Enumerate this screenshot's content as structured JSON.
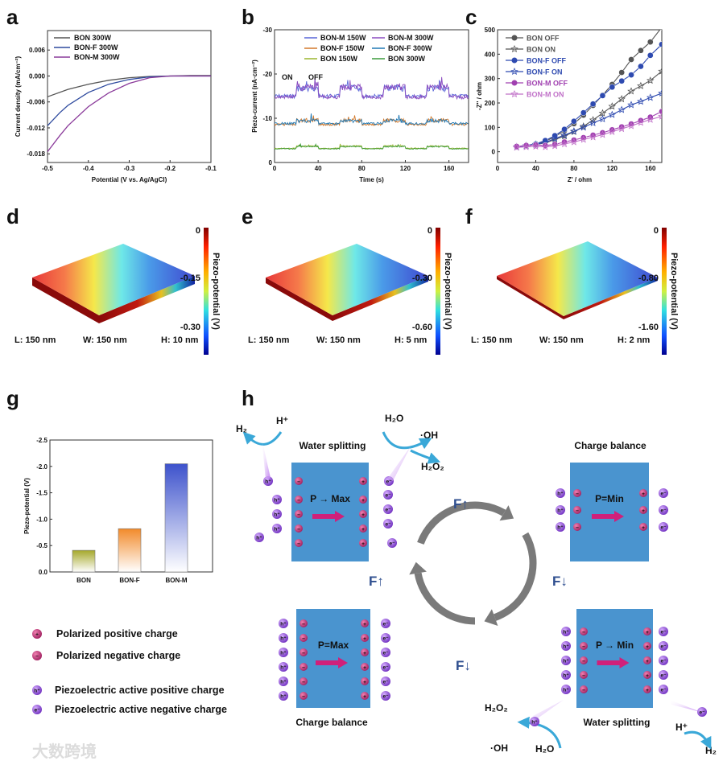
{
  "panel_labels": [
    "a",
    "b",
    "c",
    "d",
    "e",
    "f",
    "g",
    "h"
  ],
  "chart_data": [
    {
      "id": "a",
      "type": "line",
      "xlabel": "Potential (V vs. Ag/AgCl)",
      "ylabel": "Current density (mA/cm⁻²)",
      "xlim": [
        -0.5,
        -0.1
      ],
      "ylim": [
        -0.02,
        0.0105
      ],
      "xticks": [
        -0.5,
        -0.4,
        -0.3,
        -0.2,
        -0.1
      ],
      "xtick_labels": [
        "-0.5",
        "-0.4",
        "-0.3",
        "-0.2",
        "-0.1"
      ],
      "yticks": [
        0.006,
        0.0,
        -0.006,
        -0.012,
        -0.018
      ],
      "ytick_labels": [
        "0.006",
        "0.000",
        "-0.006",
        "-0.012",
        "-0.018"
      ],
      "legend_position": "top-left",
      "series": [
        {
          "name": "BON 300W",
          "color": "#555555",
          "x": [
            -0.5,
            -0.45,
            -0.4,
            -0.35,
            -0.3,
            -0.25,
            -0.2,
            -0.15,
            -0.1
          ],
          "y": [
            -0.0048,
            -0.0031,
            -0.0019,
            -0.001,
            -0.0004,
            -0.0001,
            0,
            0.0001,
            0.0001
          ]
        },
        {
          "name": "BON-F 300W",
          "color": "#2e4a9e",
          "x": [
            -0.5,
            -0.47,
            -0.45,
            -0.4,
            -0.35,
            -0.3,
            -0.25,
            -0.2,
            -0.15,
            -0.1
          ],
          "y": [
            -0.0115,
            -0.0085,
            -0.0068,
            -0.0038,
            -0.0019,
            -0.0008,
            -0.0002,
            0,
            0,
            0
          ]
        },
        {
          "name": "BON-M 300W",
          "color": "#8a3a9a",
          "x": [
            -0.5,
            -0.47,
            -0.45,
            -0.4,
            -0.35,
            -0.3,
            -0.25,
            -0.2,
            -0.15,
            -0.1
          ],
          "y": [
            -0.0175,
            -0.0138,
            -0.0115,
            -0.0071,
            -0.0039,
            -0.0017,
            -0.0004,
            0,
            0,
            0
          ]
        }
      ]
    },
    {
      "id": "b",
      "type": "line",
      "xlabel": "Time (s)",
      "ylabel": "Piezo-current (nA·cm⁻²)",
      "xlim": [
        0,
        178
      ],
      "ylim": [
        0,
        -30
      ],
      "xticks": [
        0,
        40,
        80,
        120,
        160
      ],
      "xtick_labels": [
        "0",
        "40",
        "80",
        "120",
        "160"
      ],
      "yticks": [
        -30,
        -20,
        -10,
        0
      ],
      "ytick_labels": [
        "-30",
        "-20",
        "-10",
        "0"
      ],
      "annotations": [
        "ON",
        "OFF"
      ],
      "on_intervals": [
        [
          20,
          40
        ],
        [
          60,
          80
        ],
        [
          100,
          120
        ],
        [
          140,
          160
        ]
      ],
      "legend_position": "top-right",
      "series": [
        {
          "name": "BON-M 150W",
          "color": "#5865d8",
          "off_level": -15.0,
          "on_level": -16.8
        },
        {
          "name": "BON-M 300W",
          "color": "#8a4bc0",
          "off_level": -14.8,
          "on_level": -17.0
        },
        {
          "name": "BON-F 150W",
          "color": "#d2782a",
          "off_level": -8.6,
          "on_level": -9.5
        },
        {
          "name": "BON-F 300W",
          "color": "#1f78b4",
          "off_level": -8.8,
          "on_level": -9.4
        },
        {
          "name": "BON 150W",
          "color": "#9ab52e",
          "off_level": -3.2,
          "on_level": -3.7
        },
        {
          "name": "BON 300W",
          "color": "#3a9a3a",
          "off_level": -3.1,
          "on_level": -3.6
        }
      ]
    },
    {
      "id": "c",
      "type": "line",
      "xlabel": "Z' / ohm",
      "ylabel": "-Z'' / ohm",
      "xlim": [
        0,
        172
      ],
      "ylim": [
        -44,
        500
      ],
      "xticks": [
        0,
        40,
        80,
        120,
        160
      ],
      "xtick_labels": [
        "0",
        "40",
        "80",
        "120",
        "160"
      ],
      "yticks": [
        0,
        100,
        200,
        300,
        400,
        500
      ],
      "ytick_labels": [
        "0",
        "100",
        "200",
        "300",
        "400",
        "500"
      ],
      "legend_position": "top-left",
      "series": [
        {
          "name": "BON OFF",
          "color": "#555555",
          "marker": "circle",
          "x": [
            20,
            30,
            40,
            50,
            60,
            70,
            80,
            90,
            100,
            110,
            120,
            130,
            140,
            150,
            160,
            172
          ],
          "y": [
            20,
            25,
            30,
            42,
            62,
            86,
            115,
            150,
            190,
            232,
            276,
            325,
            378,
            415,
            450,
            510
          ]
        },
        {
          "name": "BON ON",
          "color": "#555555",
          "marker": "star",
          "x": [
            20,
            30,
            40,
            50,
            60,
            70,
            80,
            90,
            100,
            110,
            120,
            130,
            140,
            150,
            160,
            172
          ],
          "y": [
            20,
            24,
            30,
            36,
            50,
            64,
            82,
            104,
            130,
            158,
            186,
            216,
            248,
            270,
            292,
            330
          ]
        },
        {
          "name": "BON-F OFF",
          "color": "#2e4ab0",
          "marker": "circle",
          "x": [
            20,
            30,
            40,
            50,
            60,
            70,
            80,
            90,
            100,
            110,
            120,
            130,
            140,
            150,
            160,
            172
          ],
          "y": [
            20,
            26,
            32,
            46,
            66,
            92,
            125,
            160,
            196,
            230,
            265,
            290,
            315,
            350,
            395,
            440
          ]
        },
        {
          "name": "BON-F ON",
          "color": "#2e4ab0",
          "marker": "star",
          "x": [
            20,
            30,
            40,
            50,
            60,
            70,
            80,
            90,
            100,
            110,
            120,
            130,
            140,
            150,
            160,
            172
          ],
          "y": [
            20,
            24,
            30,
            38,
            54,
            68,
            84,
            100,
            118,
            134,
            152,
            172,
            192,
            206,
            222,
            240
          ]
        },
        {
          "name": "BON-M OFF",
          "color": "#a040b0",
          "marker": "circle",
          "x": [
            20,
            30,
            40,
            50,
            60,
            70,
            80,
            90,
            100,
            110,
            120,
            130,
            140,
            150,
            160,
            172
          ],
          "y": [
            22,
            26,
            28,
            26,
            30,
            40,
            48,
            58,
            68,
            78,
            90,
            102,
            114,
            128,
            142,
            165
          ]
        },
        {
          "name": "BON-M ON",
          "color": "#c070c8",
          "marker": "star",
          "x": [
            20,
            30,
            40,
            50,
            60,
            70,
            80,
            90,
            100,
            110,
            120,
            130,
            140,
            150,
            160,
            172
          ],
          "y": [
            18,
            20,
            22,
            20,
            24,
            32,
            40,
            50,
            60,
            70,
            82,
            94,
            106,
            120,
            132,
            145
          ]
        }
      ]
    },
    {
      "id": "g",
      "type": "bar",
      "xlabel": "",
      "ylabel": "Piezo-potential (V)",
      "categories": [
        "BON",
        "BON-F",
        "BON-M"
      ],
      "values": [
        -0.41,
        -0.82,
        -2.05
      ],
      "colors": [
        "#a5a82a",
        "#f28a2a",
        "#3d52cc"
      ],
      "ylim": [
        0,
        -2.5
      ],
      "yticks": [
        0,
        -0.5,
        -1.0,
        -1.5,
        -2.0,
        -2.5
      ],
      "ytick_labels": [
        "0.0",
        "-0.5",
        "-1.0",
        "-1.5",
        "-2.0",
        "-2.5"
      ]
    }
  ],
  "simulations": [
    {
      "id": "d",
      "colorbar_title": "Piezo-potential (V)",
      "colorbar_ticks": [
        "0",
        "-0.15",
        "-0.30"
      ],
      "dims": [
        "L: 150 nm",
        "W: 150 nm",
        "H: 10 nm"
      ]
    },
    {
      "id": "e",
      "colorbar_title": "Piezo-potential (V)",
      "colorbar_ticks": [
        "0",
        "-0.30",
        "-0.60"
      ],
      "dims": [
        "L: 150 nm",
        "W: 150 nm",
        "H: 5 nm"
      ]
    },
    {
      "id": "f",
      "colorbar_title": "Piezo-potential (V)",
      "colorbar_ticks": [
        "0",
        "-0.80",
        "-1.60"
      ],
      "dims": [
        "L: 150 nm",
        "W: 150 nm",
        "H: 2 nm"
      ]
    }
  ],
  "scheme": {
    "states": [
      {
        "title": "Water splitting",
        "polarization": "P → Max"
      },
      {
        "title": "Charge balance",
        "polarization": "P=Min"
      },
      {
        "title": "Charge balance",
        "polarization": "P=Max"
      },
      {
        "title": "Water splitting",
        "polarization": "P → Min"
      }
    ],
    "force_labels": [
      "F↑",
      "F↑",
      "F↓",
      "F↓"
    ],
    "species": {
      "h2": "H₂",
      "hplus": "H⁺",
      "h2o": "H₂O",
      "oh": "·OH",
      "h2o2": "H₂O₂"
    },
    "hole": "h⁺",
    "electron": "e⁻",
    "plus": "+",
    "minus": "−",
    "colors": {
      "crystal": "#4a94cf",
      "polar_charge": "#c0306a",
      "active_charge": "#9050d0",
      "arrow": "#d0207a",
      "cycle": "#7a7a7a"
    }
  },
  "legend_h": [
    {
      "symbol": "+",
      "label": "Polarized positive charge"
    },
    {
      "symbol": "−",
      "label": "Polarized negative charge"
    },
    {
      "symbol": "h⁺",
      "label": "Piezoelectric active positive charge"
    },
    {
      "symbol": "e⁻",
      "label": "Piezoelectric active negative charge"
    }
  ],
  "watermark": "大数跨境"
}
